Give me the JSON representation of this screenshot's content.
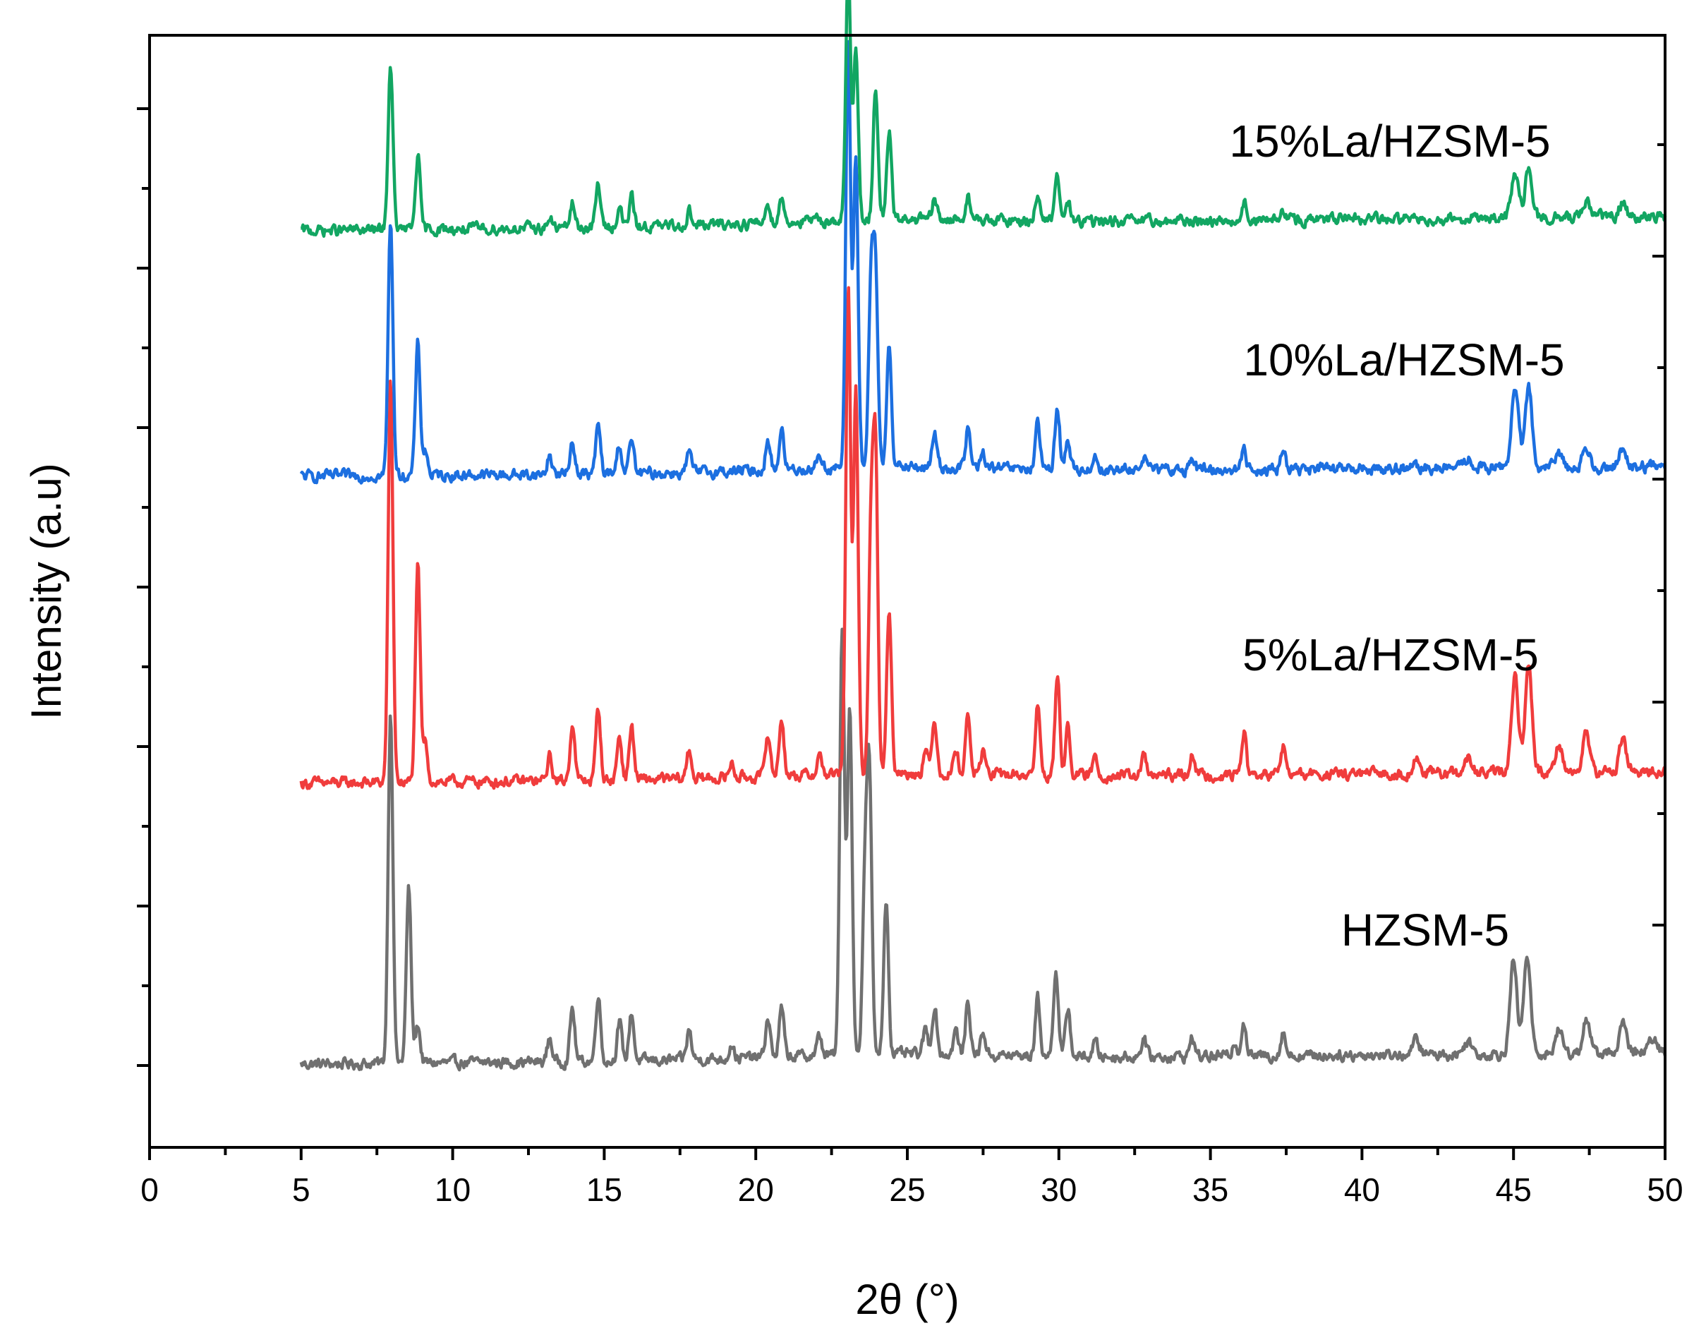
{
  "chart_data": {
    "type": "line",
    "xlabel": "2θ (°)",
    "ylabel": "Intensity (a.u)",
    "xlim": [
      0,
      50
    ],
    "x_ticks": [
      "0",
      "5",
      "10",
      "15",
      "20",
      "25",
      "30",
      "35",
      "40",
      "45",
      "50"
    ],
    "y_tick_labels_shown": false,
    "grid": false,
    "legend": "none; series labelled directly above each trace",
    "x_range_of_data": [
      5,
      50
    ],
    "series": [
      {
        "name": "HZSM-5",
        "color": "#707070",
        "baseline": 0.4,
        "baseline_end": 0.52,
        "peaks": [
          [
            7.95,
            3.6
          ],
          [
            8.55,
            1.8
          ],
          [
            8.85,
            0.4
          ],
          [
            13.2,
            0.25
          ],
          [
            13.95,
            0.55
          ],
          [
            14.8,
            0.7
          ],
          [
            15.5,
            0.4
          ],
          [
            15.9,
            0.5
          ],
          [
            17.8,
            0.3
          ],
          [
            19.2,
            0.15
          ],
          [
            20.4,
            0.4
          ],
          [
            20.85,
            0.5
          ],
          [
            22.1,
            0.2
          ],
          [
            22.85,
            4.4
          ],
          [
            23.1,
            3.6
          ],
          [
            23.6,
            1.8
          ],
          [
            23.75,
            2.8
          ],
          [
            24.3,
            1.6
          ],
          [
            25.6,
            0.25
          ],
          [
            25.9,
            0.5
          ],
          [
            26.6,
            0.25
          ],
          [
            27.0,
            0.55
          ],
          [
            27.5,
            0.25
          ],
          [
            29.3,
            0.6
          ],
          [
            29.9,
            0.9
          ],
          [
            30.3,
            0.5
          ],
          [
            31.2,
            0.15
          ],
          [
            32.8,
            0.2
          ],
          [
            34.4,
            0.2
          ],
          [
            35.8,
            0.15
          ],
          [
            36.1,
            0.35
          ],
          [
            37.4,
            0.25
          ],
          [
            41.8,
            0.15
          ],
          [
            43.5,
            0.15
          ],
          [
            45.0,
            0.95
          ],
          [
            45.45,
            1.0
          ],
          [
            46.5,
            0.25
          ],
          [
            47.4,
            0.35
          ],
          [
            48.6,
            0.3
          ],
          [
            49.6,
            0.15
          ]
        ]
      },
      {
        "name": "5%La/HZSM-5",
        "color": "#f03c3c",
        "baseline": 0.4,
        "baseline_end": 0.52,
        "peaks": [
          [
            7.95,
            4.1
          ],
          [
            8.85,
            2.2
          ],
          [
            9.1,
            0.4
          ],
          [
            13.2,
            0.25
          ],
          [
            13.95,
            0.6
          ],
          [
            14.8,
            0.75
          ],
          [
            15.5,
            0.45
          ],
          [
            15.9,
            0.55
          ],
          [
            17.8,
            0.3
          ],
          [
            19.2,
            0.15
          ],
          [
            20.4,
            0.45
          ],
          [
            20.85,
            0.6
          ],
          [
            22.1,
            0.2
          ],
          [
            23.05,
            5.0
          ],
          [
            23.3,
            3.9
          ],
          [
            23.8,
            2.4
          ],
          [
            23.95,
            3.2
          ],
          [
            24.4,
            1.7
          ],
          [
            25.6,
            0.25
          ],
          [
            25.9,
            0.55
          ],
          [
            26.6,
            0.25
          ],
          [
            27.0,
            0.6
          ],
          [
            27.5,
            0.25
          ],
          [
            29.3,
            0.7
          ],
          [
            29.95,
            1.0
          ],
          [
            30.3,
            0.5
          ],
          [
            31.2,
            0.2
          ],
          [
            32.8,
            0.2
          ],
          [
            34.4,
            0.25
          ],
          [
            36.1,
            0.45
          ],
          [
            37.4,
            0.3
          ],
          [
            41.8,
            0.15
          ],
          [
            43.5,
            0.15
          ],
          [
            45.05,
            1.0
          ],
          [
            45.5,
            1.1
          ],
          [
            46.5,
            0.3
          ],
          [
            47.4,
            0.4
          ],
          [
            48.6,
            0.35
          ]
        ]
      },
      {
        "name": "10%La/HZSM-5",
        "color": "#1c6fe0",
        "baseline": 0.4,
        "baseline_end": 0.5,
        "peaks": [
          [
            7.95,
            2.6
          ],
          [
            8.85,
            1.35
          ],
          [
            9.1,
            0.25
          ],
          [
            13.2,
            0.2
          ],
          [
            13.95,
            0.35
          ],
          [
            14.8,
            0.5
          ],
          [
            15.5,
            0.3
          ],
          [
            15.9,
            0.35
          ],
          [
            17.8,
            0.2
          ],
          [
            20.4,
            0.3
          ],
          [
            20.85,
            0.4
          ],
          [
            22.1,
            0.15
          ],
          [
            23.05,
            4.4
          ],
          [
            23.3,
            3.2
          ],
          [
            23.8,
            1.8
          ],
          [
            23.95,
            2.0
          ],
          [
            24.4,
            1.3
          ],
          [
            25.9,
            0.35
          ],
          [
            27.0,
            0.4
          ],
          [
            27.5,
            0.15
          ],
          [
            29.3,
            0.45
          ],
          [
            29.95,
            0.65
          ],
          [
            30.3,
            0.3
          ],
          [
            31.2,
            0.15
          ],
          [
            32.8,
            0.15
          ],
          [
            34.4,
            0.15
          ],
          [
            36.1,
            0.2
          ],
          [
            37.4,
            0.2
          ],
          [
            43.5,
            0.1
          ],
          [
            45.05,
            0.85
          ],
          [
            45.5,
            0.8
          ],
          [
            46.5,
            0.15
          ],
          [
            47.4,
            0.2
          ],
          [
            48.6,
            0.2
          ]
        ]
      },
      {
        "name": "15%La/HZSM-5",
        "color": "#12a662",
        "baseline": 0.4,
        "baseline_end": 0.55,
        "peaks": [
          [
            7.95,
            1.7
          ],
          [
            8.85,
            0.75
          ],
          [
            13.2,
            0.1
          ],
          [
            13.95,
            0.25
          ],
          [
            14.8,
            0.45
          ],
          [
            15.5,
            0.2
          ],
          [
            15.9,
            0.3
          ],
          [
            17.8,
            0.15
          ],
          [
            20.4,
            0.2
          ],
          [
            20.85,
            0.25
          ],
          [
            23.05,
            2.6
          ],
          [
            23.3,
            1.8
          ],
          [
            23.95,
            1.3
          ],
          [
            24.4,
            0.9
          ],
          [
            25.9,
            0.2
          ],
          [
            27.0,
            0.25
          ],
          [
            29.3,
            0.3
          ],
          [
            29.95,
            0.45
          ],
          [
            30.3,
            0.2
          ],
          [
            36.1,
            0.2
          ],
          [
            37.4,
            0.1
          ],
          [
            45.05,
            0.45
          ],
          [
            45.5,
            0.5
          ],
          [
            47.4,
            0.15
          ],
          [
            48.6,
            0.15
          ]
        ]
      }
    ]
  }
}
